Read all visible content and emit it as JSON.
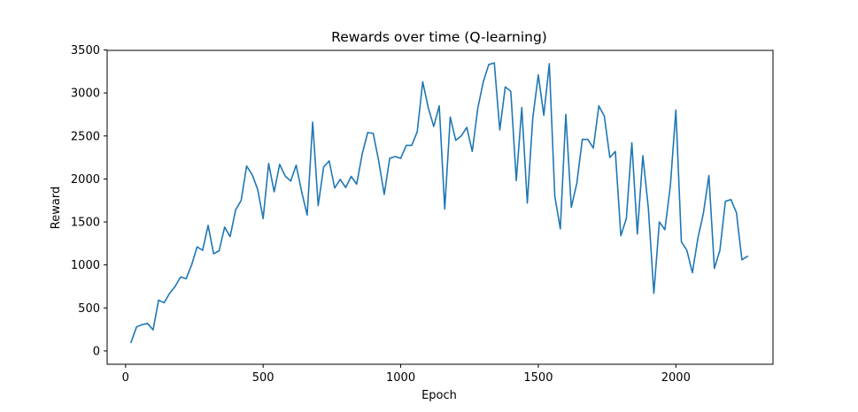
{
  "chart_data": {
    "type": "line",
    "title": "Rewards over time (Q-learning)",
    "xlabel": "Epoch",
    "ylabel": "Reward",
    "xlim": [
      -67,
      2353
    ],
    "ylim": [
      -155,
      3495
    ],
    "xticks": [
      0,
      500,
      1000,
      1500,
      2000
    ],
    "yticks": [
      0,
      500,
      1000,
      1500,
      2000,
      2500,
      3000,
      3500
    ],
    "grid": false,
    "line_color": "#1f77b4",
    "series": [
      {
        "x": [
          20,
          40,
          60,
          80,
          100,
          120,
          140,
          160,
          180,
          200,
          220,
          240,
          260,
          280,
          300,
          320,
          340,
          360,
          380,
          400,
          420,
          440,
          460,
          480,
          500,
          520,
          540,
          560,
          580,
          600,
          620,
          640,
          660,
          680,
          700,
          720,
          740,
          760,
          780,
          800,
          820,
          840,
          860,
          880,
          900,
          920,
          940,
          960,
          980,
          1000,
          1020,
          1040,
          1060,
          1080,
          1100,
          1120,
          1140,
          1160,
          1180,
          1200,
          1220,
          1240,
          1260,
          1280,
          1300,
          1320,
          1340,
          1360,
          1380,
          1400,
          1420,
          1440,
          1460,
          1480,
          1500,
          1520,
          1540,
          1560,
          1580,
          1600,
          1620,
          1640,
          1660,
          1680,
          1700,
          1720,
          1740,
          1760,
          1780,
          1800,
          1820,
          1840,
          1860,
          1880,
          1900,
          1920,
          1940,
          1960,
          1980,
          2000,
          2020,
          2040,
          2060,
          2080,
          2100,
          2120,
          2140,
          2160,
          2180,
          2200,
          2220,
          2240,
          2260
        ],
        "values": [
          100,
          280,
          305,
          320,
          245,
          590,
          560,
          670,
          750,
          860,
          840,
          1000,
          1210,
          1170,
          1460,
          1130,
          1165,
          1440,
          1330,
          1640,
          1750,
          2150,
          2050,
          1880,
          1540,
          2180,
          1850,
          2170,
          2035,
          1975,
          2160,
          1850,
          1580,
          2660,
          1690,
          2140,
          2210,
          1895,
          1995,
          1900,
          2030,
          1940,
          2290,
          2540,
          2530,
          2210,
          1820,
          2240,
          2260,
          2240,
          2390,
          2390,
          2550,
          3130,
          2830,
          2610,
          2850,
          1650,
          2720,
          2450,
          2500,
          2600,
          2320,
          2820,
          3130,
          3330,
          3350,
          2570,
          3070,
          3020,
          1980,
          2830,
          1720,
          2710,
          3210,
          2740,
          3340,
          1800,
          1420,
          2750,
          1670,
          1950,
          2460,
          2460,
          2360,
          2850,
          2730,
          2250,
          2320,
          1340,
          1540,
          2420,
          1360,
          2270,
          1660,
          670,
          1500,
          1410,
          1920,
          2800,
          1270,
          1170,
          910,
          1310,
          1600,
          2040,
          960,
          1170,
          1740,
          1760,
          1610,
          1060,
          1100
        ]
      }
    ]
  }
}
